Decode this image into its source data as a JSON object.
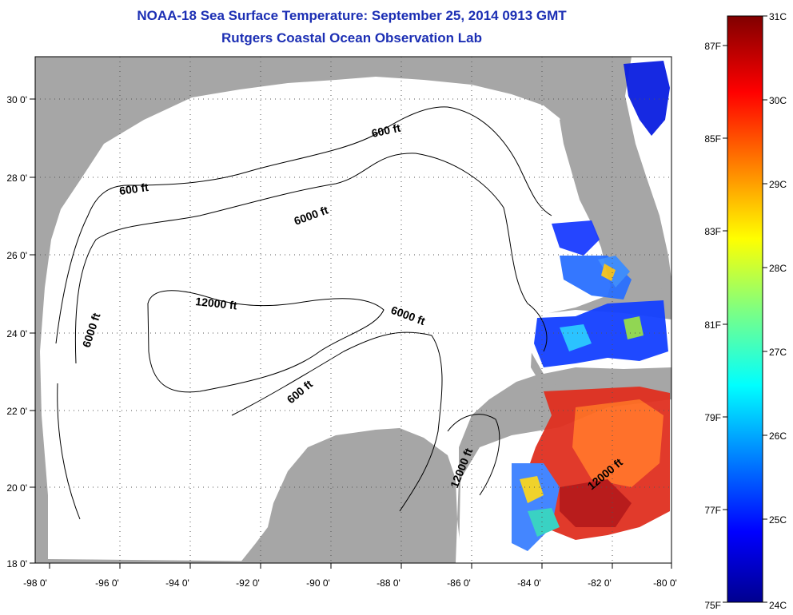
{
  "title": {
    "line1": "NOAA-18 Sea Surface Temperature:  September 25, 2014 0913 GMT",
    "line2": "Rutgers Coastal Ocean Observation Lab"
  },
  "map": {
    "lon_labels": [
      "-98 0'",
      "-96 0'",
      "-94 0'",
      "-92 0'",
      "-90 0'",
      "-88 0'",
      "-86 0'",
      "-84 0'",
      "-82 0'",
      "-80 0'"
    ],
    "lat_labels": [
      "30 0'",
      "28 0'",
      "26 0'",
      "24 0'",
      "22 0'",
      "20 0'",
      "18 0'"
    ],
    "lon_range": [
      -98,
      -80
    ],
    "lat_range": [
      18,
      31
    ],
    "contour_labels": [
      "600 ft",
      "600 ft",
      "6000 ft",
      "12000 ft",
      "6000 ft",
      "6000 ft",
      "600 ft",
      "12000 ft",
      "12000 ft"
    ],
    "colors": {
      "land": "#a6a6a6",
      "ocean": "#ffffff",
      "title": "#1c2fb4"
    }
  },
  "colorbar": {
    "celsius_labels": [
      "31C",
      "30C",
      "29C",
      "28C",
      "27C",
      "26C",
      "25C",
      "24C"
    ],
    "fahrenheit_labels": [
      "87F",
      "85F",
      "83F",
      "81F",
      "79F",
      "77F",
      "75F"
    ],
    "range_c": [
      24,
      31
    ],
    "range_f": [
      75,
      87.8
    ],
    "colormap": "jet"
  }
}
